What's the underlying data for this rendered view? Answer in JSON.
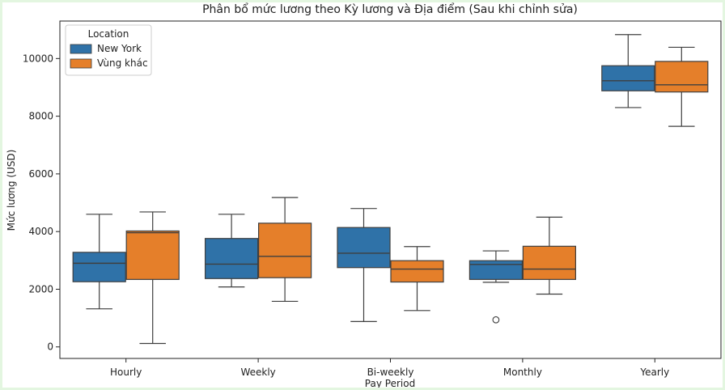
{
  "chart_data": {
    "type": "box",
    "title": "Phân bổ mức lương theo Kỳ lương và Địa điểm (Sau khi chỉnh sửa)",
    "xlabel": "Pay Period",
    "ylabel": "Mức lương (USD)",
    "categories": [
      "Hourly",
      "Weekly",
      "Bi-weekly",
      "Monthly",
      "Yearly"
    ],
    "yticks": [
      0,
      2000,
      4000,
      6000,
      8000,
      10000
    ],
    "ylim": [
      -400,
      11300
    ],
    "grid": false,
    "legend": {
      "title": "Location",
      "position": "top-left"
    },
    "series": [
      {
        "name": "New York",
        "color": "#2f72a8",
        "boxes": [
          {
            "whisker_low": 1320,
            "q1": 2260,
            "median": 2900,
            "q3": 3280,
            "whisker_high": 4600,
            "outliers": []
          },
          {
            "whisker_low": 2080,
            "q1": 2370,
            "median": 2870,
            "q3": 3760,
            "whisker_high": 4600,
            "outliers": []
          },
          {
            "whisker_low": 880,
            "q1": 2750,
            "median": 3250,
            "q3": 4140,
            "whisker_high": 4800,
            "outliers": []
          },
          {
            "whisker_low": 2240,
            "q1": 2340,
            "median": 2860,
            "q3": 2990,
            "whisker_high": 3330,
            "outliers": [
              940
            ]
          },
          {
            "whisker_low": 8300,
            "q1": 8880,
            "median": 9230,
            "q3": 9750,
            "whisker_high": 10830,
            "outliers": []
          }
        ]
      },
      {
        "name": "Vùng khác",
        "color": "#e57f2a",
        "boxes": [
          {
            "whisker_low": 120,
            "q1": 2340,
            "median": 3960,
            "q3": 4020,
            "whisker_high": 4680,
            "outliers": []
          },
          {
            "whisker_low": 1580,
            "q1": 2400,
            "median": 3140,
            "q3": 4290,
            "whisker_high": 5180,
            "outliers": []
          },
          {
            "whisker_low": 1260,
            "q1": 2250,
            "median": 2700,
            "q3": 2990,
            "whisker_high": 3480,
            "outliers": []
          },
          {
            "whisker_low": 1830,
            "q1": 2340,
            "median": 2700,
            "q3": 3490,
            "whisker_high": 4500,
            "outliers": []
          },
          {
            "whisker_low": 7650,
            "q1": 8840,
            "median": 9090,
            "q3": 9900,
            "whisker_high": 10390,
            "outliers": []
          }
        ]
      }
    ]
  }
}
